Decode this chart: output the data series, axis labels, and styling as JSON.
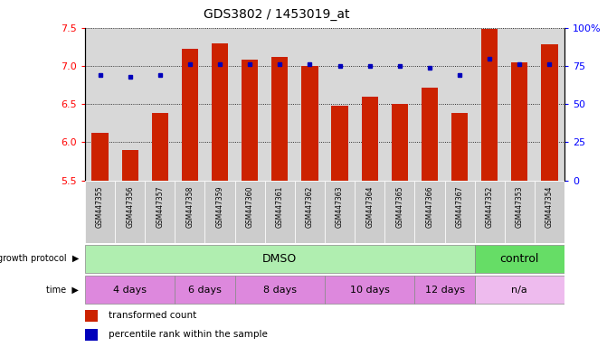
{
  "title": "GDS3802 / 1453019_at",
  "samples": [
    "GSM447355",
    "GSM447356",
    "GSM447357",
    "GSM447358",
    "GSM447359",
    "GSM447360",
    "GSM447361",
    "GSM447362",
    "GSM447363",
    "GSM447364",
    "GSM447365",
    "GSM447366",
    "GSM447367",
    "GSM447352",
    "GSM447353",
    "GSM447354"
  ],
  "bar_values": [
    6.12,
    5.9,
    6.38,
    7.22,
    7.3,
    7.08,
    7.12,
    7.0,
    6.48,
    6.6,
    6.5,
    6.72,
    6.38,
    7.48,
    7.05,
    7.28
  ],
  "dot_values": [
    69,
    68,
    69,
    76,
    76,
    76,
    76,
    76,
    75,
    75,
    75,
    74,
    69,
    80,
    76,
    76
  ],
  "ylim_left": [
    5.5,
    7.5
  ],
  "ylim_right": [
    0,
    100
  ],
  "yticks_left": [
    5.5,
    6.0,
    6.5,
    7.0,
    7.5
  ],
  "yticks_right": [
    0,
    25,
    50,
    75,
    100
  ],
  "bar_color": "#cc2200",
  "dot_color": "#0000bb",
  "bg_color": "#d8d8d8",
  "growth_dmso_color": "#b0eeb0",
  "growth_control_color": "#66dd66",
  "time_dmso_color": "#dd88dd",
  "time_na_color": "#eebbee",
  "legend_bar_label": "transformed count",
  "legend_dot_label": "percentile rank within the sample",
  "growth_label": "growth protocol",
  "time_label": "time",
  "time_groups": [
    {
      "label": "4 days",
      "start": 0,
      "end": 2
    },
    {
      "label": "6 days",
      "start": 3,
      "end": 4
    },
    {
      "label": "8 days",
      "start": 5,
      "end": 7
    },
    {
      "label": "10 days",
      "start": 8,
      "end": 10
    },
    {
      "label": "12 days",
      "start": 11,
      "end": 12
    },
    {
      "label": "n/a",
      "start": 13,
      "end": 15
    }
  ]
}
